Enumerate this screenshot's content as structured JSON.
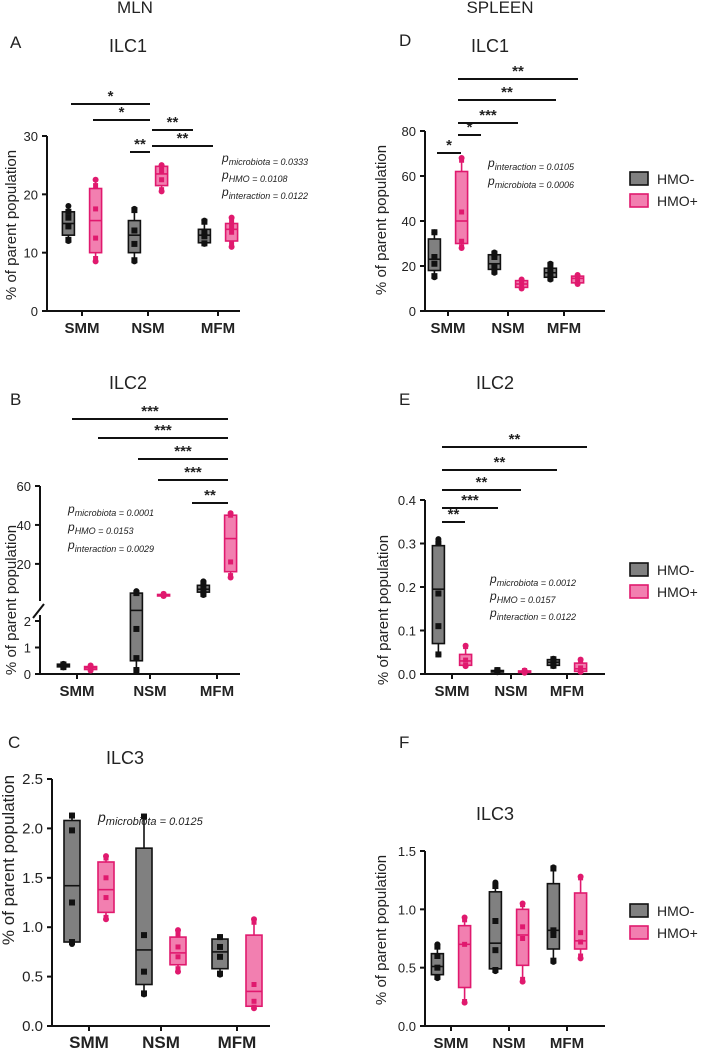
{
  "headers": {
    "left": "MLN",
    "right": "SPLEEN"
  },
  "colors": {
    "hmo_minus_fill": "#808080",
    "hmo_plus_fill": "#f27fb0",
    "hmo_plus_stroke": "#e0196e",
    "hmo_minus_stroke": "#111111"
  },
  "legend": [
    {
      "label": "HMO-",
      "series": "minus"
    },
    {
      "label": "HMO+",
      "series": "plus"
    }
  ],
  "ylabel": "% of parent population",
  "categories": [
    "SMM",
    "NSM",
    "MFM"
  ],
  "chart_data": [
    {
      "id": "A",
      "letter": "A",
      "title": "ILC1",
      "type": "box",
      "ylim": [
        0,
        30
      ],
      "ticks": [
        0,
        10,
        20,
        30
      ],
      "series": [
        {
          "name": "HMO-",
          "boxes": [
            {
              "min": 12,
              "q1": 13,
              "median": 15,
              "q3": 17,
              "max": 18,
              "points": [
                12.2,
                14.5,
                16,
                17
              ]
            },
            {
              "min": 8.5,
              "q1": 10,
              "median": 13,
              "q3": 15.5,
              "max": 17.5,
              "points": [
                8.7,
                11.5,
                13.8,
                17.3
              ]
            },
            {
              "min": 11.5,
              "q1": 11.7,
              "median": 13,
              "q3": 14,
              "max": 15.5,
              "points": [
                11.6,
                12.8,
                13.6,
                15.3
              ]
            }
          ]
        },
        {
          "name": "HMO+",
          "boxes": [
            {
              "min": 8.5,
              "q1": 10,
              "median": 15.5,
              "q3": 21,
              "max": 22.5,
              "points": [
                9,
                12.5,
                17.5,
                21.5
              ]
            },
            {
              "min": 20.5,
              "q1": 21.5,
              "median": 23.5,
              "q3": 24.8,
              "max": 25,
              "points": [
                20.8,
                22.5,
                24,
                24.8
              ]
            },
            {
              "min": 11,
              "q1": 12,
              "median": 14,
              "q3": 15,
              "max": 16,
              "points": [
                11.5,
                13.5,
                14.5,
                15.5
              ]
            }
          ]
        }
      ],
      "annotations": [
        {
          "text": "pmicrobiota = 0.0333",
          "sym": "p",
          "sub": "microbiota = 0.0333"
        },
        {
          "text": "pHMO = 0.0108",
          "sym": "p",
          "sub": "HMO = 0.0108"
        },
        {
          "text": "pinteraction = 0.0122",
          "sym": "p",
          "sub": "interaction = 0.0122"
        }
      ],
      "brackets": [
        "*",
        "*",
        "**",
        "**",
        "**"
      ]
    },
    {
      "id": "B",
      "letter": "B",
      "title": "ILC2",
      "type": "box-broken-axis",
      "ylim_low": [
        0,
        2
      ],
      "ylim_high": [
        3,
        60
      ],
      "ticks_low": [
        0,
        1,
        2
      ],
      "ticks_high": [
        20,
        40,
        60
      ],
      "series": [
        {
          "name": "HMO-",
          "boxes": [
            {
              "min": 0.25,
              "q1": 0.27,
              "median": 0.33,
              "q3": 0.37,
              "max": 0.38,
              "points": [
                0.26,
                0.32,
                0.36
              ]
            },
            {
              "min": 0.15,
              "q1": 0.5,
              "median": 2.4,
              "q3": 5,
              "max": 6,
              "points": [
                0.15,
                0.6,
                1.7,
                5
              ]
            },
            {
              "min": 4,
              "q1": 5.5,
              "median": 7,
              "q3": 9,
              "max": 11,
              "points": [
                4.5,
                6,
                8,
                10
              ]
            }
          ]
        },
        {
          "name": "HMO+",
          "boxes": [
            {
              "min": 0.13,
              "q1": 0.17,
              "median": 0.24,
              "q3": 0.28,
              "max": 0.32,
              "points": [
                0.15,
                0.2,
                0.25,
                0.3
              ]
            },
            {
              "min": 3.5,
              "q1": 3.8,
              "median": 4,
              "q3": 4.3,
              "max": 4.6,
              "points": [
                3.8,
                4.1,
                4.4
              ]
            },
            {
              "min": 13,
              "q1": 16,
              "median": 33,
              "q3": 45,
              "max": 46,
              "points": [
                14,
                21,
                45
              ]
            }
          ]
        }
      ],
      "annotations": [
        {
          "text": "pmicrobiota = 0.0001",
          "sym": "p",
          "sub": "microbiota = 0.0001"
        },
        {
          "text": "pHMO = 0.0153",
          "sym": "p",
          "sub": "HMO = 0.0153"
        },
        {
          "text": "pinteraction = 0.0029",
          "sym": "p",
          "sub": "interaction = 0.0029"
        }
      ],
      "brackets": [
        "***",
        "***",
        "***",
        "***",
        "**"
      ]
    },
    {
      "id": "C",
      "letter": "C",
      "title": "ILC3",
      "type": "box",
      "ylim": [
        0,
        2.5
      ],
      "ticks": [
        "0.0",
        "0.5",
        "1.0",
        "1.5",
        "2.0",
        "2.5"
      ],
      "series": [
        {
          "name": "HMO-",
          "boxes": [
            {
              "min": 0.83,
              "q1": 0.85,
              "median": 1.42,
              "q3": 2.08,
              "max": 2.13,
              "points": [
                0.85,
                1.25,
                1.98,
                2.13
              ]
            },
            {
              "min": 0.32,
              "q1": 0.42,
              "median": 0.77,
              "q3": 1.8,
              "max": 2.12,
              "points": [
                0.33,
                0.55,
                0.92,
                2.12
              ]
            },
            {
              "min": 0.52,
              "q1": 0.58,
              "median": 0.75,
              "q3": 0.88,
              "max": 0.9,
              "points": [
                0.53,
                0.7,
                0.8,
                0.9
              ]
            }
          ]
        },
        {
          "name": "HMO+",
          "boxes": [
            {
              "min": 1.08,
              "q1": 1.15,
              "median": 1.38,
              "q3": 1.66,
              "max": 1.72,
              "points": [
                1.1,
                1.3,
                1.5,
                1.7
              ]
            },
            {
              "min": 0.55,
              "q1": 0.62,
              "median": 0.74,
              "q3": 0.9,
              "max": 0.97,
              "points": [
                0.58,
                0.7,
                0.8,
                0.93
              ]
            },
            {
              "min": 0.18,
              "q1": 0.2,
              "median": 0.35,
              "q3": 0.92,
              "max": 1.08,
              "points": [
                0.19,
                0.25,
                0.42,
                1.05
              ]
            }
          ]
        }
      ],
      "annotations": [
        {
          "text": "pmicrobiota = 0.0125",
          "sym": "p",
          "sub": "microbiota = 0.0125"
        }
      ],
      "brackets": []
    },
    {
      "id": "D",
      "letter": "D",
      "title": "ILC1",
      "type": "box",
      "ylim": [
        0,
        80
      ],
      "ticks": [
        0,
        20,
        40,
        60,
        80
      ],
      "series": [
        {
          "name": "HMO-",
          "boxes": [
            {
              "min": 15,
              "q1": 18,
              "median": 23,
              "q3": 32,
              "max": 35,
              "points": [
                15.5,
                21,
                24,
                35
              ]
            },
            {
              "min": 17,
              "q1": 18.5,
              "median": 21,
              "q3": 25,
              "max": 26,
              "points": [
                17.5,
                20,
                24,
                25.5
              ]
            },
            {
              "min": 14,
              "q1": 15,
              "median": 17,
              "q3": 19,
              "max": 21,
              "points": [
                14.5,
                16,
                18,
                20.5
              ]
            }
          ]
        },
        {
          "name": "HMO+",
          "boxes": [
            {
              "min": 28,
              "q1": 30,
              "median": 40,
              "q3": 62,
              "max": 68,
              "points": [
                28.5,
                31,
                44,
                67
              ]
            },
            {
              "min": 10,
              "q1": 10.5,
              "median": 12,
              "q3": 13.5,
              "max": 14,
              "points": [
                10.5,
                12.5,
                13.5
              ]
            },
            {
              "min": 12,
              "q1": 12.5,
              "median": 14.5,
              "q3": 15.5,
              "max": 16,
              "points": [
                12.5,
                14.5,
                15.5
              ]
            }
          ]
        }
      ],
      "annotations": [
        {
          "text": "pinteraction = 0.0105",
          "sym": "p",
          "sub": "interaction = 0.0105"
        },
        {
          "text": "pmicrobiota = 0.0006",
          "sym": "p",
          "sub": "microbiota = 0.0006"
        }
      ],
      "brackets": [
        "*",
        "*",
        "***",
        "**",
        "**"
      ]
    },
    {
      "id": "E",
      "letter": "E",
      "title": "ILC2",
      "type": "box",
      "ylim": [
        0,
        0.4
      ],
      "ticks": [
        "0.0",
        "0.1",
        "0.2",
        "0.3",
        "0.4"
      ],
      "series": [
        {
          "name": "HMO-",
          "boxes": [
            {
              "min": 0.045,
              "q1": 0.07,
              "median": 0.195,
              "q3": 0.295,
              "max": 0.31,
              "points": [
                0.045,
                0.11,
                0.185,
                0.3
              ]
            },
            {
              "min": 0.004,
              "q1": 0.005,
              "median": 0.006,
              "q3": 0.008,
              "max": 0.009,
              "points": [
                0.005,
                0.007,
                0.009
              ]
            },
            {
              "min": 0.018,
              "q1": 0.02,
              "median": 0.027,
              "q3": 0.033,
              "max": 0.035,
              "points": [
                0.019,
                0.026,
                0.034
              ]
            }
          ]
        },
        {
          "name": "HMO+",
          "boxes": [
            {
              "min": 0.018,
              "q1": 0.02,
              "median": 0.03,
              "q3": 0.045,
              "max": 0.065,
              "points": [
                0.02,
                0.032,
                0.063
              ]
            },
            {
              "min": 0.003,
              "q1": 0.004,
              "median": 0.005,
              "q3": 0.007,
              "max": 0.008,
              "points": [
                0.004,
                0.006,
                0.008
              ]
            },
            {
              "min": 0.005,
              "q1": 0.006,
              "median": 0.012,
              "q3": 0.025,
              "max": 0.033,
              "points": [
                0.006,
                0.014,
                0.032
              ]
            }
          ]
        }
      ],
      "annotations": [
        {
          "text": "pmicrobiota = 0.0012",
          "sym": "p",
          "sub": "microbiota = 0.0012"
        },
        {
          "text": "pHMO = 0.0157",
          "sym": "p",
          "sub": "HMO = 0.0157"
        },
        {
          "text": "pinteraction = 0.0122",
          "sym": "p",
          "sub": "interaction = 0.0122"
        }
      ],
      "brackets": [
        "**",
        "***",
        "**",
        "**",
        "**"
      ]
    },
    {
      "id": "F",
      "letter": "F",
      "title": "ILC3",
      "type": "box",
      "ylim": [
        0,
        1.5
      ],
      "ticks": [
        "0.0",
        "0.5",
        "1.0",
        "1.5"
      ],
      "series": [
        {
          "name": "HMO-",
          "boxes": [
            {
              "min": 0.41,
              "q1": 0.44,
              "median": 0.51,
              "q3": 0.62,
              "max": 0.7,
              "points": [
                0.42,
                0.5,
                0.6,
                0.68
              ]
            },
            {
              "min": 0.47,
              "q1": 0.49,
              "median": 0.71,
              "q3": 1.15,
              "max": 1.23,
              "points": [
                0.48,
                0.65,
                0.9,
                1.2
              ]
            },
            {
              "min": 0.55,
              "q1": 0.66,
              "median": 0.82,
              "q3": 1.22,
              "max": 1.36,
              "points": [
                0.56,
                0.78,
                0.82,
                1.35
              ]
            }
          ]
        },
        {
          "name": "HMO+",
          "boxes": [
            {
              "min": 0.2,
              "q1": 0.33,
              "median": 0.7,
              "q3": 0.86,
              "max": 0.93,
              "points": [
                0.21,
                0.7,
                0.91
              ]
            },
            {
              "min": 0.38,
              "q1": 0.52,
              "median": 0.78,
              "q3": 1.0,
              "max": 1.05,
              "points": [
                0.4,
                0.75,
                0.85,
                1.04
              ]
            },
            {
              "min": 0.58,
              "q1": 0.66,
              "median": 0.73,
              "q3": 1.14,
              "max": 1.28,
              "points": [
                0.6,
                0.72,
                0.8,
                1.27
              ]
            }
          ]
        }
      ],
      "annotations": [],
      "brackets": []
    }
  ]
}
